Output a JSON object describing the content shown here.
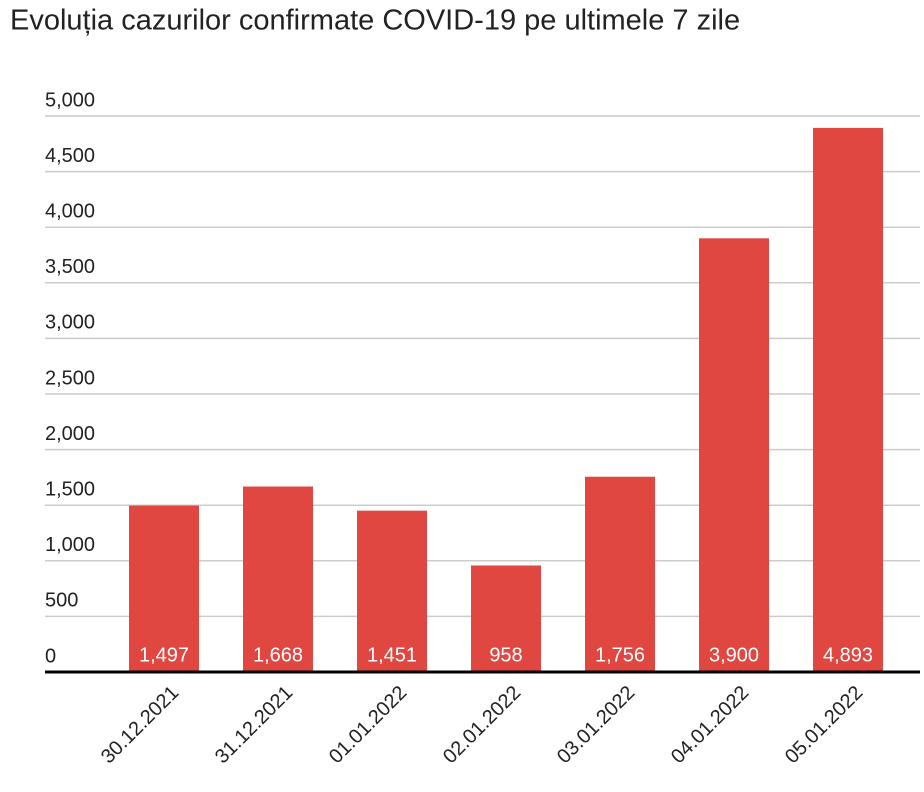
{
  "chart_data": {
    "type": "bar",
    "title": "Evoluția cazurilor confirmate COVID-19 pe ultimele 7 zile",
    "categories": [
      "30.12.2021",
      "31.12.2021",
      "01.01.2022",
      "02.01.2022",
      "03.01.2022",
      "04.01.2022",
      "05.01.2022"
    ],
    "values": [
      1497,
      1668,
      1451,
      958,
      1756,
      3900,
      4893
    ],
    "value_labels": [
      "1,497",
      "1,668",
      "1,451",
      "958",
      "1,756",
      "3,900",
      "4,893"
    ],
    "color": "#df4740",
    "ylim": [
      0,
      5000
    ],
    "yticks": [
      0,
      500,
      {
        "value": 1000,
        "label": "1,000"
      },
      {
        "value": 1500,
        "label": "1,500"
      },
      {
        "value": 2000,
        "label": "2,000"
      },
      {
        "value": 2500,
        "label": "2,500"
      },
      {
        "value": 3000,
        "label": "3,000"
      },
      {
        "value": 3500,
        "label": "3,500"
      },
      {
        "value": 4000,
        "label": "4,000"
      },
      {
        "value": 4500,
        "label": "4,500"
      },
      {
        "value": 5000,
        "label": "5,000"
      }
    ],
    "grid": true
  }
}
